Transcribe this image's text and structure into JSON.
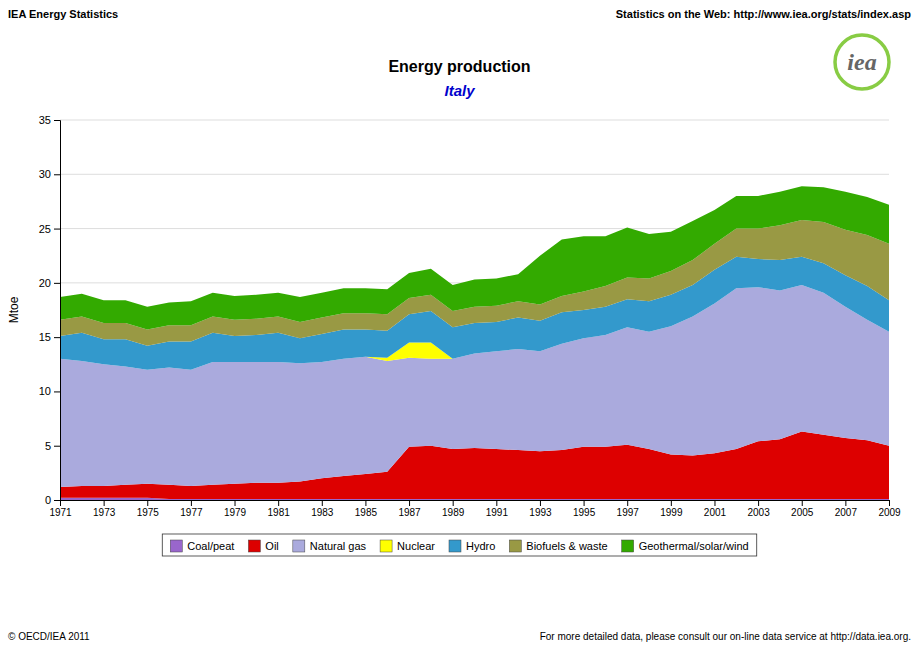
{
  "chart_data": {
    "type": "area",
    "stacked": true,
    "title": "Energy production",
    "subtitle": "Italy",
    "y_label": "Mtoe",
    "annotations": [
      "IEA Energy Statistics",
      "Statistics on the Web: http://www.iea.org/stats/index.asp",
      "© OECD/IEA 2011",
      "For more detailed data, please consult our on-line data service at http://data.iea.org.",
      "iea"
    ],
    "x": [
      1971,
      1972,
      1973,
      1974,
      1975,
      1976,
      1977,
      1978,
      1979,
      1980,
      1981,
      1982,
      1983,
      1984,
      1985,
      1986,
      1987,
      1988,
      1989,
      1990,
      1991,
      1992,
      1993,
      1994,
      1995,
      1996,
      1997,
      1998,
      1999,
      2000,
      2001,
      2002,
      2003,
      2004,
      2005,
      2006,
      2007,
      2008,
      2009
    ],
    "xlim": [
      1971,
      2009
    ],
    "xticks": [
      1971,
      1973,
      1975,
      1977,
      1979,
      1981,
      1983,
      1985,
      1987,
      1989,
      1991,
      1993,
      1995,
      1997,
      1999,
      2001,
      2003,
      2005,
      2007,
      2009
    ],
    "ylim": [
      0,
      35
    ],
    "yticks": [
      0,
      5,
      10,
      15,
      20,
      25,
      30,
      35
    ],
    "grid": true,
    "legend": "bottom",
    "series": [
      {
        "name": "Coal/peat",
        "color": "#9966CC",
        "values": [
          0.2,
          0.2,
          0.2,
          0.2,
          0.2,
          0.1,
          0.1,
          0.1,
          0.1,
          0.1,
          0.1,
          0.1,
          0.1,
          0.1,
          0.1,
          0.1,
          0.1,
          0.1,
          0.1,
          0.1,
          0.1,
          0.1,
          0.1,
          0.1,
          0.1,
          0.1,
          0.1,
          0.1,
          0.1,
          0.1,
          0.1,
          0.1,
          0.1,
          0.1,
          0.1,
          0.1,
          0.1,
          0.1,
          0.1
        ]
      },
      {
        "name": "Oil",
        "color": "#DD0000",
        "values": [
          1.0,
          1.1,
          1.1,
          1.2,
          1.3,
          1.3,
          1.2,
          1.3,
          1.4,
          1.5,
          1.5,
          1.6,
          1.9,
          2.1,
          2.3,
          2.5,
          4.8,
          4.9,
          4.6,
          4.7,
          4.6,
          4.5,
          4.4,
          4.5,
          4.8,
          4.8,
          5.0,
          4.6,
          4.1,
          4.0,
          4.2,
          4.6,
          5.3,
          5.5,
          6.2,
          5.9,
          5.6,
          5.4,
          4.9
        ]
      },
      {
        "name": "Natural gas",
        "color": "#AAAADD",
        "values": [
          11.8,
          11.5,
          11.2,
          10.9,
          10.5,
          10.8,
          10.7,
          11.3,
          11.2,
          11.1,
          11.1,
          10.9,
          10.7,
          10.8,
          10.8,
          10.2,
          8.2,
          8.0,
          8.3,
          8.7,
          9.0,
          9.3,
          9.2,
          9.8,
          10.0,
          10.3,
          10.8,
          10.8,
          11.8,
          12.8,
          13.8,
          14.8,
          14.2,
          13.7,
          13.5,
          13.1,
          12.1,
          11.1,
          10.5
        ]
      },
      {
        "name": "Nuclear",
        "color": "#FFFF00",
        "values": [
          0.0,
          0.0,
          0.0,
          0.0,
          0.0,
          0.0,
          0.0,
          0.0,
          0.0,
          0.0,
          0.0,
          0.0,
          0.0,
          0.0,
          0.0,
          0.3,
          1.4,
          1.5,
          0.0,
          0.0,
          0.0,
          0.0,
          0.0,
          0.0,
          0.0,
          0.0,
          0.0,
          0.0,
          0.0,
          0.0,
          0.0,
          0.0,
          0.0,
          0.0,
          0.0,
          0.0,
          0.0,
          0.0,
          0.0
        ]
      },
      {
        "name": "Hydro",
        "color": "#3399CC",
        "values": [
          2.1,
          2.6,
          2.3,
          2.5,
          2.2,
          2.4,
          2.6,
          2.7,
          2.4,
          2.5,
          2.7,
          2.3,
          2.6,
          2.7,
          2.5,
          2.5,
          2.6,
          2.9,
          2.9,
          2.8,
          2.7,
          2.9,
          2.8,
          2.9,
          2.6,
          2.6,
          2.6,
          2.8,
          2.9,
          2.9,
          3.1,
          2.9,
          2.6,
          2.8,
          2.6,
          2.7,
          2.9,
          3.1,
          2.9
        ]
      },
      {
        "name": "Biofuels & waste",
        "color": "#999944",
        "values": [
          1.5,
          1.5,
          1.5,
          1.5,
          1.5,
          1.5,
          1.5,
          1.5,
          1.5,
          1.5,
          1.5,
          1.5,
          1.5,
          1.5,
          1.5,
          1.5,
          1.5,
          1.5,
          1.5,
          1.5,
          1.5,
          1.5,
          1.5,
          1.5,
          1.7,
          1.9,
          2.0,
          2.1,
          2.2,
          2.3,
          2.4,
          2.6,
          2.8,
          3.2,
          3.4,
          3.8,
          4.2,
          4.7,
          5.2
        ]
      },
      {
        "name": "Geothermal/solar/wind",
        "color": "#33AA00",
        "values": [
          2.1,
          2.1,
          2.1,
          2.1,
          2.1,
          2.1,
          2.2,
          2.2,
          2.2,
          2.2,
          2.2,
          2.3,
          2.3,
          2.3,
          2.3,
          2.3,
          2.3,
          2.4,
          2.4,
          2.5,
          2.5,
          2.5,
          4.5,
          5.2,
          5.1,
          4.6,
          4.6,
          4.1,
          3.6,
          3.6,
          3.1,
          3.0,
          3.0,
          3.1,
          3.1,
          3.2,
          3.5,
          3.5,
          3.6
        ]
      }
    ]
  }
}
